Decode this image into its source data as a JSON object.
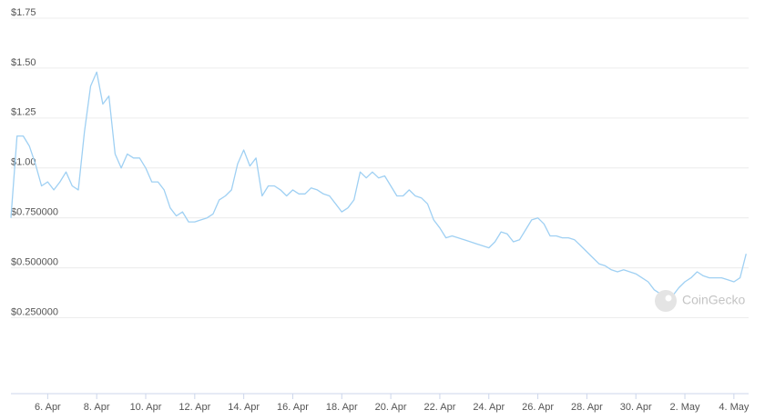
{
  "chart_data": {
    "type": "line",
    "watermark": "CoinGecko",
    "x": [
      4.5,
      4.75,
      5,
      5.25,
      5.5,
      5.75,
      6,
      6.25,
      6.5,
      6.75,
      7,
      7.25,
      7.5,
      7.75,
      8,
      8.25,
      8.5,
      8.75,
      9,
      9.25,
      9.5,
      9.75,
      10,
      10.25,
      10.5,
      10.75,
      11,
      11.25,
      11.5,
      11.75,
      12,
      12.25,
      12.5,
      12.75,
      13,
      13.25,
      13.5,
      13.75,
      14,
      14.25,
      14.5,
      14.75,
      15,
      15.25,
      15.5,
      15.75,
      16,
      16.25,
      16.5,
      16.75,
      17,
      17.25,
      17.5,
      17.75,
      18,
      18.25,
      18.5,
      18.75,
      19,
      19.25,
      19.5,
      19.75,
      20,
      20.25,
      20.5,
      20.75,
      21,
      21.25,
      21.5,
      21.75,
      22,
      22.25,
      22.5,
      22.75,
      23,
      23.25,
      23.5,
      23.75,
      24,
      24.25,
      24.5,
      24.75,
      25,
      25.25,
      25.5,
      25.75,
      26,
      26.25,
      26.5,
      26.75,
      27,
      27.25,
      27.5,
      27.75,
      28,
      28.25,
      28.5,
      28.75,
      29,
      29.25,
      29.5,
      29.75,
      30,
      30.25,
      30.5,
      30.75,
      31,
      31.25,
      31.5,
      31.75,
      32,
      32.25,
      32.5,
      32.75,
      33,
      33.25,
      33.5,
      33.75,
      34,
      34.25,
      34.5
    ],
    "series": [
      {
        "color": "#9fd0f3",
        "values": [
          0.75,
          1.16,
          1.16,
          1.11,
          1.02,
          0.91,
          0.93,
          0.89,
          0.93,
          0.98,
          0.91,
          0.89,
          1.18,
          1.41,
          1.48,
          1.32,
          1.36,
          1.07,
          1.0,
          1.07,
          1.05,
          1.05,
          1.0,
          0.93,
          0.93,
          0.89,
          0.8,
          0.76,
          0.78,
          0.73,
          0.73,
          0.74,
          0.75,
          0.77,
          0.84,
          0.86,
          0.89,
          1.02,
          1.09,
          1.01,
          1.05,
          0.86,
          0.91,
          0.91,
          0.89,
          0.86,
          0.89,
          0.87,
          0.87,
          0.9,
          0.89,
          0.87,
          0.86,
          0.82,
          0.78,
          0.8,
          0.84,
          0.98,
          0.95,
          0.98,
          0.95,
          0.96,
          0.91,
          0.86,
          0.86,
          0.89,
          0.86,
          0.85,
          0.82,
          0.74,
          0.7,
          0.65,
          0.66,
          0.65,
          0.64,
          0.63,
          0.62,
          0.61,
          0.6,
          0.63,
          0.68,
          0.67,
          0.63,
          0.64,
          0.69,
          0.74,
          0.75,
          0.72,
          0.66,
          0.66,
          0.65,
          0.65,
          0.64,
          0.61,
          0.58,
          0.55,
          0.52,
          0.51,
          0.49,
          0.48,
          0.49,
          0.48,
          0.47,
          0.45,
          0.43,
          0.39,
          0.37,
          0.37,
          0.36,
          0.4,
          0.43,
          0.45,
          0.48,
          0.46,
          0.45,
          0.45,
          0.45,
          0.44,
          0.43,
          0.45,
          0.57
        ]
      }
    ],
    "xlim": [
      4.5,
      34.6
    ],
    "xticks": [
      {
        "value": 6,
        "label": "6. Apr"
      },
      {
        "value": 8,
        "label": "8. Apr"
      },
      {
        "value": 10,
        "label": "10. Apr"
      },
      {
        "value": 12,
        "label": "12. Apr"
      },
      {
        "value": 14,
        "label": "14. Apr"
      },
      {
        "value": 16,
        "label": "16. Apr"
      },
      {
        "value": 18,
        "label": "18. Apr"
      },
      {
        "value": 20,
        "label": "20. Apr"
      },
      {
        "value": 22,
        "label": "22. Apr"
      },
      {
        "value": 24,
        "label": "24. Apr"
      },
      {
        "value": 26,
        "label": "26. Apr"
      },
      {
        "value": 28,
        "label": "28. Apr"
      },
      {
        "value": 30,
        "label": "30. Apr"
      },
      {
        "value": 32,
        "label": "2. May"
      },
      {
        "value": 34,
        "label": "4. May"
      }
    ],
    "ylim": [
      -0.13,
      1.75
    ],
    "yticks": [
      {
        "value": 0.25,
        "label": "$0.250000"
      },
      {
        "value": 0.5,
        "label": "$0.500000"
      },
      {
        "value": 0.75,
        "label": "$0.750000"
      },
      {
        "value": 1,
        "label": "$1.00"
      },
      {
        "value": 1.25,
        "label": "$1.25"
      },
      {
        "value": 1.5,
        "label": "$1.50"
      },
      {
        "value": 1.75,
        "label": "$1.75"
      }
    ],
    "grid": true
  }
}
